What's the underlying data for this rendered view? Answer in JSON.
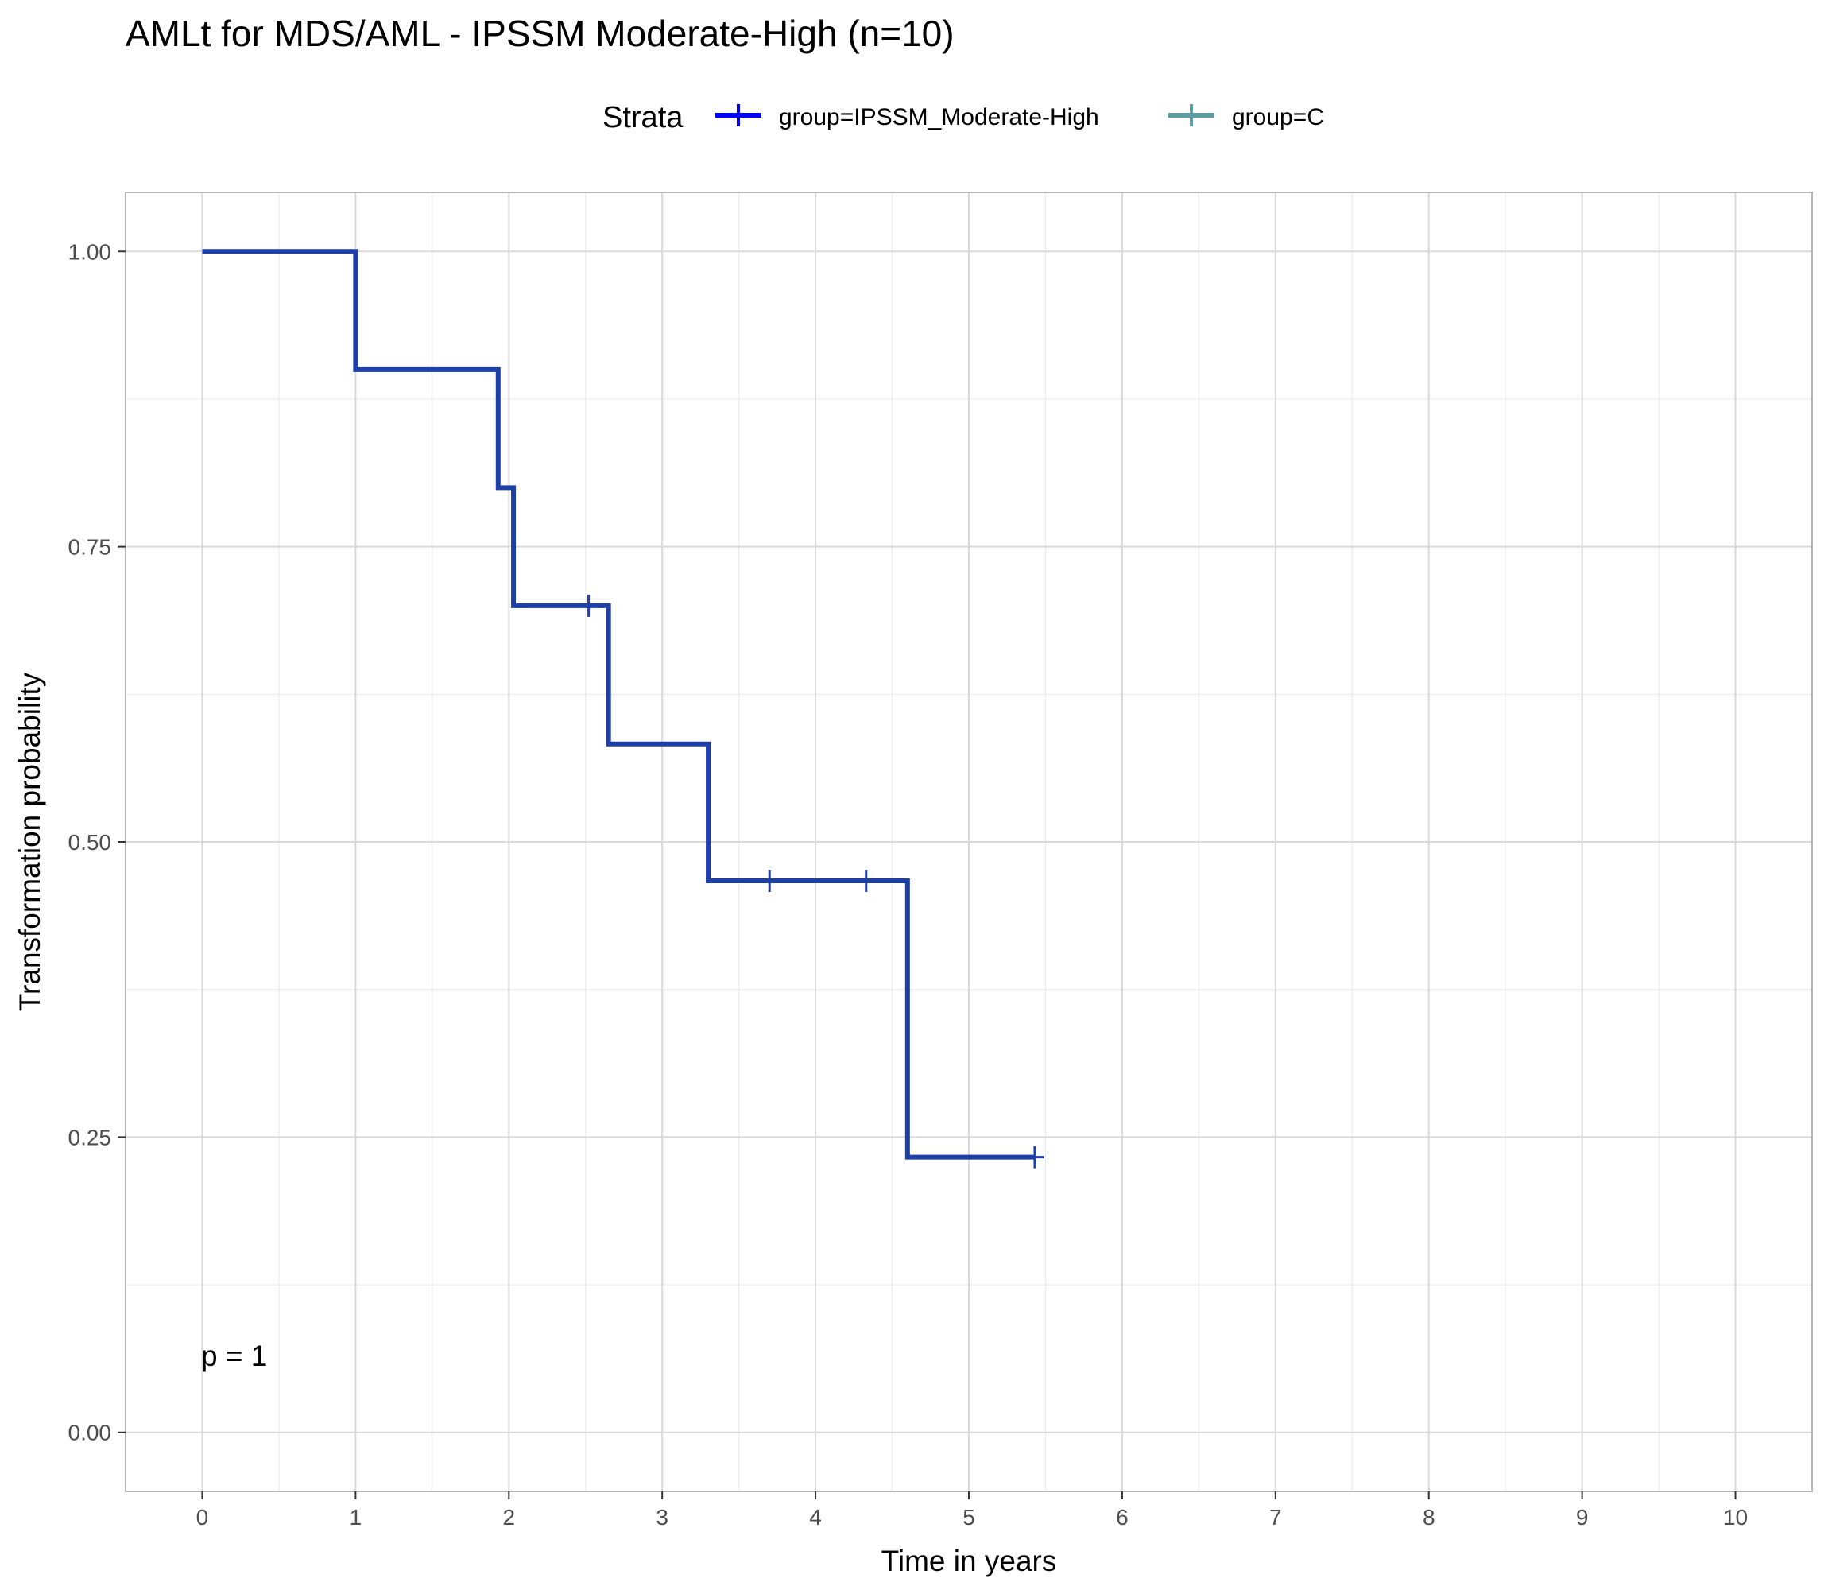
{
  "chart_data": {
    "type": "line",
    "subtype": "kaplan-meier step",
    "title": "AMLt for MDS/AML - IPSSM Moderate-High (n=10)",
    "xlabel": "Time in years",
    "ylabel": "Transformation probability",
    "xlim": [
      -0.5,
      10.5
    ],
    "ylim": [
      -0.05,
      1.05
    ],
    "x_ticks": [
      0,
      1,
      2,
      3,
      4,
      5,
      6,
      7,
      8,
      9,
      10
    ],
    "x_tick_labels": [
      "0",
      "1",
      "2",
      "3",
      "4",
      "5",
      "6",
      "7",
      "8",
      "9",
      "10"
    ],
    "y_ticks": [
      0,
      0.25,
      0.5,
      0.75,
      1.0
    ],
    "y_tick_labels": [
      "0.00",
      "0.25",
      "0.50",
      "0.75",
      "1.00"
    ],
    "grid": true,
    "legend": {
      "title": "Strata",
      "position": "top",
      "entries": [
        {
          "label": "group=IPSSM_Moderate-High",
          "color": "#0000ff"
        },
        {
          "label": "group=C",
          "color": "#5f9ea0"
        }
      ]
    },
    "series": [
      {
        "name": "group=IPSSM_Moderate-High",
        "color": "#1d3fa8",
        "steps": [
          {
            "x": 0,
            "y": 1.0
          },
          {
            "x": 1.0,
            "y": 0.9
          },
          {
            "x": 1.93,
            "y": 0.8
          },
          {
            "x": 2.03,
            "y": 0.7
          },
          {
            "x": 2.65,
            "y": 0.583
          },
          {
            "x": 3.3,
            "y": 0.467
          },
          {
            "x": 4.6,
            "y": 0.233
          }
        ],
        "x_end": 5.43,
        "censor": [
          {
            "x": 2.52,
            "y": 0.7
          },
          {
            "x": 3.7,
            "y": 0.467
          },
          {
            "x": 4.33,
            "y": 0.467
          },
          {
            "x": 5.43,
            "y": 0.233
          }
        ]
      }
    ],
    "annotations": [
      {
        "text": "p = 1",
        "x": 0,
        "y": 0.065
      }
    ]
  }
}
